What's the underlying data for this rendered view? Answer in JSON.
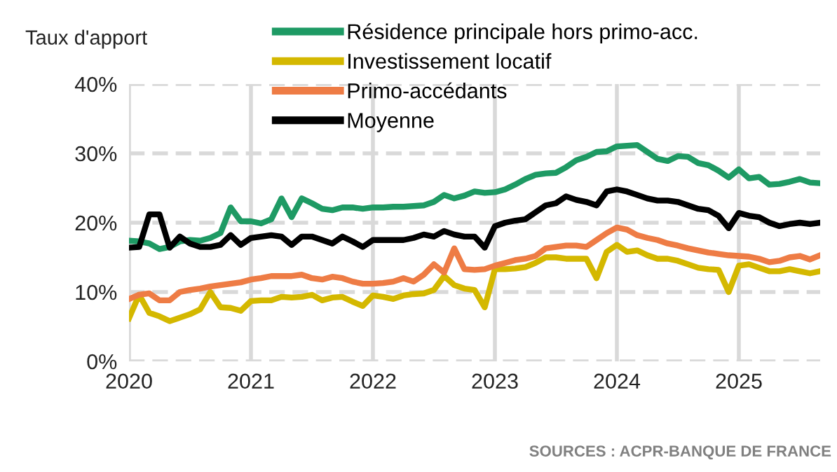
{
  "chart_data": {
    "type": "line",
    "ylabel": "Taux d'apport",
    "annotations": [
      "SOURCES : ACPR-BANQUE DE FRANCE"
    ],
    "x": [
      "2020-01",
      "2020-02",
      "2020-03",
      "2020-04",
      "2020-05",
      "2020-06",
      "2020-07",
      "2020-08",
      "2020-09",
      "2020-10",
      "2020-11",
      "2020-12",
      "2021-01",
      "2021-02",
      "2021-03",
      "2021-04",
      "2021-05",
      "2021-06",
      "2021-07",
      "2021-08",
      "2021-09",
      "2021-10",
      "2021-11",
      "2021-12",
      "2022-01",
      "2022-02",
      "2022-03",
      "2022-04",
      "2022-05",
      "2022-06",
      "2022-07",
      "2022-08",
      "2022-09",
      "2022-10",
      "2022-11",
      "2022-12",
      "2023-01",
      "2023-02",
      "2023-03",
      "2023-04",
      "2023-05",
      "2023-06",
      "2023-07",
      "2023-08",
      "2023-09",
      "2023-10",
      "2023-11",
      "2023-12",
      "2024-01",
      "2024-02",
      "2024-03",
      "2024-04",
      "2024-05",
      "2024-06",
      "2024-07",
      "2024-08",
      "2024-09",
      "2024-10",
      "2024-11",
      "2024-12",
      "2025-01",
      "2025-02",
      "2025-03",
      "2025-04",
      "2025-05",
      "2025-06",
      "2025-07",
      "2025-08",
      "2025-09"
    ],
    "xlim": [
      "2020-01",
      "2025-09"
    ],
    "xticks": [
      {
        "value": "2020-01",
        "label": "2020"
      },
      {
        "value": "2021-01",
        "label": "2021"
      },
      {
        "value": "2022-01",
        "label": "2022"
      },
      {
        "value": "2023-01",
        "label": "2023"
      },
      {
        "value": "2024-01",
        "label": "2024"
      },
      {
        "value": "2025-01",
        "label": "2025"
      }
    ],
    "ylim": [
      0,
      40
    ],
    "yticks": [
      {
        "value": 0,
        "label": "0%"
      },
      {
        "value": 10,
        "label": "10%"
      },
      {
        "value": 20,
        "label": "20%"
      },
      {
        "value": 30,
        "label": "30%"
      },
      {
        "value": 40,
        "label": "40%"
      }
    ],
    "grid": true,
    "legend": "top",
    "line_style": "solid",
    "marker": "none",
    "series": [
      {
        "name": "Résidence principale hors primo-acc.",
        "color": "#1e9a64",
        "values": [
          17.4,
          17.3,
          17.0,
          16.2,
          16.5,
          17.3,
          17.5,
          17.4,
          17.8,
          18.5,
          22.2,
          20.2,
          20.2,
          19.9,
          20.5,
          23.5,
          20.8,
          23.5,
          22.8,
          22.0,
          21.8,
          22.2,
          22.2,
          22.0,
          22.2,
          22.2,
          22.3,
          22.3,
          22.4,
          22.5,
          23.0,
          24.0,
          23.5,
          23.9,
          24.5,
          24.3,
          24.4,
          24.8,
          25.5,
          26.3,
          26.9,
          27.1,
          27.2,
          28.0,
          29.0,
          29.5,
          30.2,
          30.3,
          31.0,
          31.1,
          31.2,
          30.2,
          29.2,
          28.9,
          29.6,
          29.5,
          28.6,
          28.3,
          27.5,
          26.5,
          27.7,
          26.4,
          26.6,
          25.5,
          25.6,
          25.9,
          26.3,
          25.8,
          25.7
        ]
      },
      {
        "name": "Investissement locatif",
        "color": "#d4b800",
        "values": [
          6.2,
          9.6,
          7.0,
          6.5,
          5.8,
          6.3,
          6.8,
          7.5,
          10.0,
          7.8,
          7.7,
          7.3,
          8.7,
          8.8,
          8.8,
          9.3,
          9.2,
          9.3,
          9.6,
          8.8,
          9.2,
          9.3,
          8.6,
          8.0,
          9.5,
          9.3,
          9.0,
          9.5,
          9.7,
          9.8,
          10.3,
          12.3,
          11.0,
          10.5,
          10.3,
          7.8,
          13.3,
          13.3,
          13.4,
          13.6,
          14.2,
          15.0,
          15.0,
          14.8,
          14.8,
          14.8,
          12.0,
          15.8,
          16.8,
          15.8,
          16.0,
          15.3,
          14.8,
          14.8,
          14.5,
          14.0,
          13.5,
          13.3,
          13.2,
          10.0,
          13.8,
          14.0,
          13.5,
          13.0,
          13.0,
          13.3,
          13.0,
          12.7,
          13.0
        ]
      },
      {
        "name": "Primo-accédants",
        "color": "#ee7c45",
        "values": [
          9.0,
          9.6,
          9.8,
          8.8,
          8.8,
          10.0,
          10.3,
          10.5,
          10.8,
          11.0,
          11.2,
          11.4,
          11.8,
          12.0,
          12.3,
          12.3,
          12.3,
          12.5,
          12.0,
          11.8,
          12.2,
          12.0,
          11.5,
          11.2,
          11.2,
          11.3,
          11.5,
          12.0,
          11.5,
          12.5,
          14.0,
          12.8,
          16.3,
          13.3,
          13.2,
          13.3,
          13.8,
          14.2,
          14.6,
          14.8,
          15.2,
          16.3,
          16.5,
          16.7,
          16.7,
          16.5,
          17.5,
          18.5,
          19.3,
          19.0,
          18.2,
          17.8,
          17.5,
          17.0,
          16.7,
          16.3,
          16.0,
          15.7,
          15.5,
          15.3,
          15.2,
          15.1,
          14.8,
          14.3,
          14.5,
          15.0,
          15.2,
          14.7,
          15.3
        ]
      },
      {
        "name": "Moyenne",
        "color": "#000000",
        "values": [
          16.4,
          16.5,
          21.2,
          21.2,
          16.4,
          18.0,
          17.0,
          16.5,
          16.5,
          16.8,
          18.2,
          16.8,
          17.8,
          18.0,
          18.2,
          18.0,
          16.8,
          18.0,
          18.0,
          17.5,
          17.0,
          18.0,
          17.3,
          16.5,
          17.5,
          17.5,
          17.5,
          17.5,
          17.8,
          18.3,
          18.0,
          18.8,
          18.3,
          18.0,
          18.0,
          16.4,
          19.5,
          20.0,
          20.3,
          20.5,
          21.5,
          22.5,
          22.8,
          23.8,
          23.3,
          23.0,
          22.5,
          24.5,
          24.8,
          24.5,
          24.0,
          23.5,
          23.2,
          23.2,
          23.0,
          22.5,
          22.0,
          21.8,
          21.0,
          19.2,
          21.4,
          21.0,
          20.8,
          20.0,
          19.5,
          19.8,
          20.0,
          19.8,
          20.0
        ]
      }
    ]
  }
}
